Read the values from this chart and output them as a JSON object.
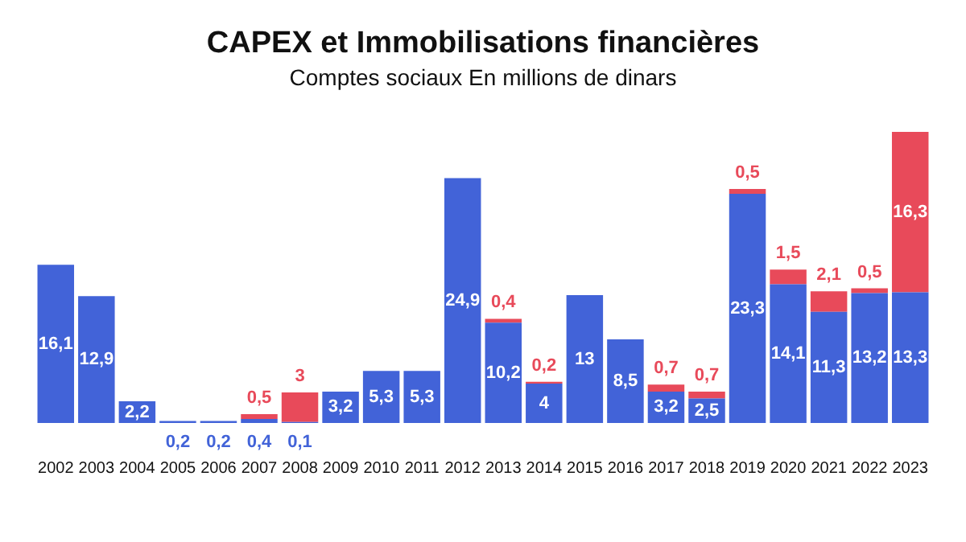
{
  "chart_data": {
    "type": "bar",
    "title": "CAPEX et Immobilisations financières",
    "subtitle": "Comptes sociaux En millions de dinars",
    "stacked": true,
    "tick_labels": "x",
    "grid": false,
    "legend": false,
    "categories": [
      "2002",
      "2003",
      "2004",
      "2005",
      "2006",
      "2007",
      "2008",
      "2009",
      "2010",
      "2011",
      "2012",
      "2013",
      "2014",
      "2015",
      "2016",
      "2017",
      "2018",
      "2019",
      "2020",
      "2021",
      "2022",
      "2023"
    ],
    "series": [
      {
        "color": "#4263d8",
        "values": [
          16.1,
          12.9,
          2.2,
          0.2,
          0.2,
          0.4,
          0.1,
          3.2,
          5.3,
          5.3,
          24.9,
          10.2,
          4,
          13,
          8.5,
          3.2,
          2.5,
          23.3,
          14.1,
          11.3,
          13.2,
          13.3
        ],
        "value_labels": [
          "16,1",
          "12,9",
          "2,2",
          "0,2",
          "0,2",
          "0,4",
          "0,1",
          "3,2",
          "5,3",
          "5,3",
          "24,9",
          "10,2",
          "4",
          "13",
          "8,5",
          "3,2",
          "2,5",
          "23,3",
          "14,1",
          "11,3",
          "13,2",
          "13,3"
        ]
      },
      {
        "color": "#e84a5a",
        "values": [
          null,
          null,
          null,
          null,
          null,
          0.5,
          3,
          null,
          null,
          null,
          null,
          0.4,
          0.2,
          null,
          null,
          0.7,
          0.7,
          0.5,
          1.5,
          2.1,
          0.5,
          16.3
        ],
        "value_labels": [
          null,
          null,
          null,
          null,
          null,
          "0,5",
          "3",
          null,
          null,
          null,
          null,
          "0,4",
          "0,2",
          null,
          null,
          "0,7",
          "0,7",
          "0,5",
          "1,5",
          "2,1",
          "0,5",
          "16,3"
        ]
      }
    ]
  }
}
